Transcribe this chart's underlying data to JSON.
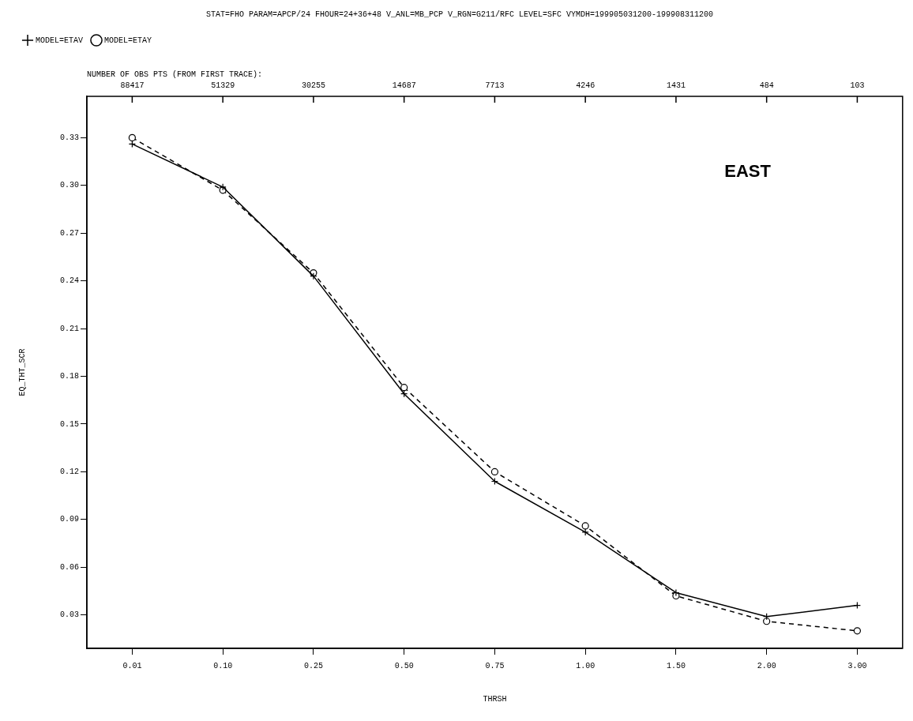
{
  "chart_data": {
    "type": "line",
    "title": "STAT=FHO PARAM=APCP/24 FHOUR=24+36+48 V_ANL=MB_PCP V_RGN=G211/RFC LEVEL=SFC VYMDH=199905031200-199908311200",
    "xlabel": "THRSH",
    "ylabel": "EQ_THT_SCR",
    "categories": [
      "0.01",
      "0.10",
      "0.25",
      "0.50",
      "0.75",
      "1.00",
      "1.50",
      "2.00",
      "3.00"
    ],
    "series": [
      {
        "name": "MODEL=ETAV",
        "color": "#000000",
        "line_style": "solid",
        "marker": "cross",
        "values": [
          0.326,
          0.299,
          0.243,
          0.169,
          0.114,
          0.082,
          0.044,
          0.029,
          0.036
        ]
      },
      {
        "name": "MODEL=ETAY",
        "color": "#000000",
        "line_style": "dashed",
        "marker": "circle",
        "values": [
          0.33,
          0.297,
          0.245,
          0.173,
          0.12,
          0.086,
          0.042,
          0.026,
          0.02
        ]
      }
    ],
    "ylim": [
      0.009,
      0.356
    ],
    "yticks": [
      0.03,
      0.06,
      0.09,
      0.12,
      0.15,
      0.18,
      0.21,
      0.24,
      0.27,
      {
        "value": 0.3,
        "label": "0.30"
      },
      0.33
    ],
    "grid": false,
    "legend": "top left",
    "annotations": [
      "NUMBER OF OBS PTS (FROM FIRST TRACE):",
      {
        "text": "88417",
        "x": "0.01"
      },
      {
        "text": "51329",
        "x": "0.10"
      },
      {
        "text": "30255",
        "x": "0.25"
      },
      {
        "text": "14687",
        "x": "0.50"
      },
      {
        "text": "7713",
        "x": "0.75"
      },
      {
        "text": "4246",
        "x": "1.00"
      },
      {
        "text": "1431",
        "x": "1.50"
      },
      {
        "text": "484",
        "x": "2.00"
      },
      {
        "text": "103",
        "x": "3.00"
      },
      "EAST"
    ]
  }
}
